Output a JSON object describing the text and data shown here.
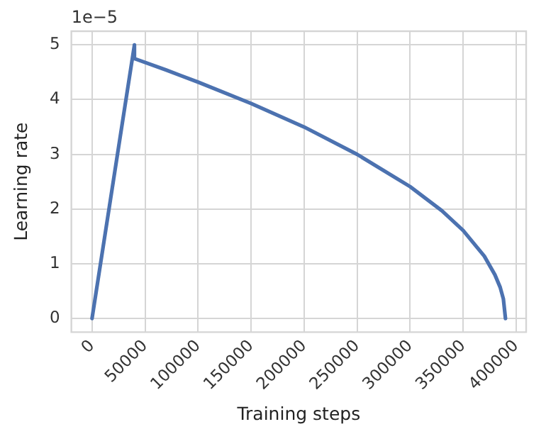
{
  "chart_data": {
    "type": "line",
    "xlabel": "Training steps",
    "ylabel": "Learning rate",
    "annotations": [
      "1e−5"
    ],
    "series": [
      {
        "color": "#4c72b0",
        "x": [
          0,
          40000,
          40000,
          70000,
          100000,
          150000,
          200000,
          250000,
          300000,
          330000,
          350000,
          370000,
          380000,
          385000,
          388000,
          390000
        ],
        "values": [
          0,
          5.0,
          4.75,
          4.54,
          4.32,
          3.93,
          3.5,
          3.0,
          2.41,
          1.97,
          1.61,
          1.14,
          0.8,
          0.57,
          0.36,
          0
        ]
      }
    ],
    "xlim": [
      -19500,
      409500
    ],
    "xticks": [
      0,
      50000,
      100000,
      150000,
      200000,
      250000,
      300000,
      350000,
      400000
    ],
    "ylim": [
      -0.25,
      5.25
    ],
    "yticks": [
      0,
      1,
      2,
      3,
      4,
      5
    ],
    "grid": true,
    "legend": false,
    "marker": "none",
    "line_style": "solid"
  }
}
